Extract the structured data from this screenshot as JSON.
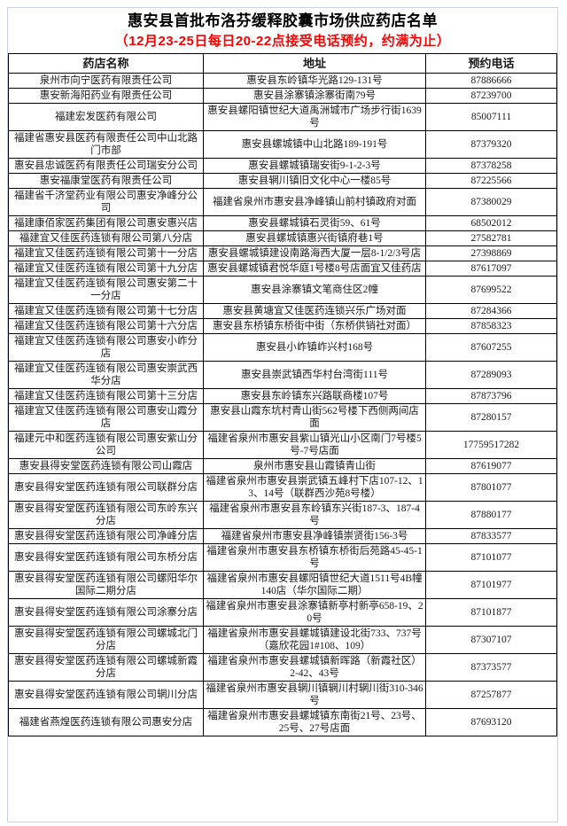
{
  "page": {
    "title": "惠安县首批布洛芬缓释胶囊市场供应药店名单",
    "subtitle": "（12月23-25日每日20-22点接受电话预约，约满为止）",
    "subtitle_color": "#ff0000",
    "border_color": "#c9d3e8",
    "grid_color": "#000000"
  },
  "table": {
    "headers": [
      "药店名称",
      "地址",
      "预约电话"
    ],
    "rows": [
      [
        "泉州市向宁医药有限责任公司",
        "惠安县东岭镇华光路129-131号",
        "87886666"
      ],
      [
        "惠安新海阳药业有限责任公司",
        "惠安县涂寨镇涂寨街南79号",
        "87239700"
      ],
      [
        "福建宏发医药有限公司",
        "惠安县螺阳镇世纪大道禹洲城市广场步行街1639号",
        "85007111"
      ],
      [
        "福建省惠安县医药有限责任公司中山北路门市部",
        "惠安县螺城镇中山北路189-191号",
        "87379320"
      ],
      [
        "惠安县忠诚医药有限责任公司瑞安分公司",
        "惠安县螺城镇瑞安街9-1-2-3号",
        "87378258"
      ],
      [
        "惠安福康堂医药有限责任公司",
        "惠安县辋川镇旧文化中心一楼85号",
        "87225566"
      ],
      [
        "福建省千济堂药业有限公司惠安净峰分公司",
        "福建省泉州市惠安县净峰镇山前村镇政府对面",
        "87380029"
      ],
      [
        "福建康佰家医药集团有限公司惠安惠兴店",
        "惠安县螺城镇石灵街59、61号",
        "68502012"
      ],
      [
        "福建宜又佳医药连锁有限公司第八分店",
        "惠安县螺城镇惠兴街镇府巷1号",
        "27582781"
      ],
      [
        "福建宜又佳医药连锁有限公司第十一分店",
        "惠安县螺城镇建设南路海西大厦一层8-1/2/3号店",
        "27398869"
      ],
      [
        "福建宜又佳医药连锁有限公司第十九分店",
        "惠安县螺城镇君悦华庭1号楼8号店面宜又佳药店",
        "87617097"
      ],
      [
        "福建宜又佳医药连锁有限公司惠安第二十一分店",
        "惠安县涂寨镇文笔商住区2幢",
        "87699522"
      ],
      [
        "福建宜又佳医药连锁有限公司第十七分店",
        "惠安县黄塘宜又佳医药连锁兴乐广场对面",
        "87284366"
      ],
      [
        "福建宜又佳医药连锁有限公司第十六分店",
        "惠安县东桥镇东桥街中街（东桥供销社对面）",
        "87858323"
      ],
      [
        "福建宜又佳医药连锁有限公司惠安小岞分店",
        "惠安县小岞镇岞兴村168号",
        "87607255"
      ],
      [
        "福建宜又佳医药连锁有限公司惠安崇武西华分店",
        "惠安县崇武镇西华村台湾街111号",
        "87289093"
      ],
      [
        "福建宜又佳医药连锁有限公司第十三分店",
        "惠安县东岭镇东兴路联商楼107号",
        "87873796"
      ],
      [
        "福建宜又佳医药连锁有限公司惠安山霞分店",
        "惠安县山霞东坑村青山街562号楼下西侧两间店面",
        "87280157"
      ],
      [
        "福建元中和医药连锁有限公司惠安紫山分公司",
        "福建省泉州市惠安县紫山镇光山小区南门7号楼5号-7号店面",
        "17759517282"
      ],
      [
        "惠安县得安堂医药连锁有限公司山霞店",
        "泉州市惠安县山霞镇青山街",
        "87619077"
      ],
      [
        "惠安县得安堂医药连锁有限公司联群分店",
        "福建省泉州市惠安县崇武镇五峰村下店107-12、13、14号（联群西沙苑8号楼）",
        "87801077"
      ],
      [
        "惠安县得安堂医药连锁有限公司东岭东兴分店",
        "福建省泉州市惠安县东岭镇东兴街187-3、187-4号",
        "87880177"
      ],
      [
        "惠安县得安堂医药连锁有限公司净峰分店",
        "福建省泉州市惠安县净峰镇崇贤街156-3号",
        "87833577"
      ],
      [
        "惠安县得安堂医药连锁有限公司东桥分店",
        "福建省泉州市惠安县东桥镇东桥街后苑路45-45-1号",
        "87101077"
      ],
      [
        "惠安县得安堂医药连锁有限公司螺阳华尔国际二期分店",
        "福建省泉州市惠安县螺阳镇世纪大道1511号4B幢140店（华尔国际二期）",
        "87101977"
      ],
      [
        "惠安县得安堂医药连锁有限公司涂寨分店",
        "福建省泉州市惠安县涂寨镇新亭村新亭658-19、20号",
        "87101877"
      ],
      [
        "惠安县得安堂医药连锁有限公司螺城北门分店",
        "福建省泉州市惠安县螺城镇建设北街733、737号（嘉欣花园1#108、109）",
        "87307107"
      ],
      [
        "惠安县得安堂医药连锁有限公司螺城新霞分店",
        "福建省泉州市惠安县螺城镇新晖路（新霞社区）2-42、43号",
        "87373577"
      ],
      [
        "惠安县得安堂医药连锁有限公司辋川分店",
        "福建省泉州市惠安县辋川镇辋川村辋川街310-346号",
        "87257877"
      ],
      [
        "福建省燕煌医药连锁有限公司惠安分店",
        "福建省泉州市惠安县螺城镇东南街21号、23号、25号、27号店面",
        "87693120"
      ]
    ]
  }
}
